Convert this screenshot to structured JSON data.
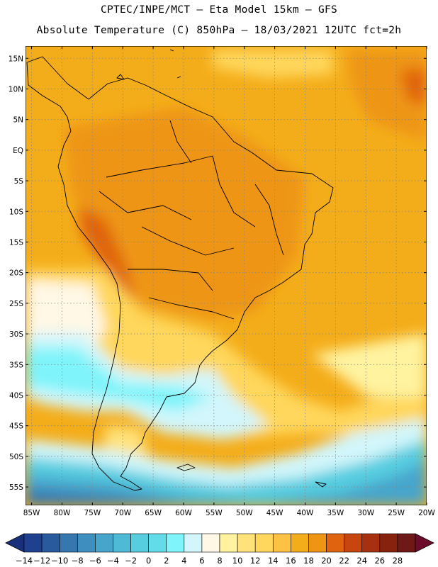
{
  "title_line1": "CPTEC/INPE/MCT –  Eta Model 15km – GFS",
  "title_line2": "Absolute Temperature (C) 850hPa – 18/03/2021 12UTC fct=2h",
  "map": {
    "lat_labels": [
      "15N",
      "10N",
      "5N",
      "EQ",
      "5S",
      "10S",
      "15S",
      "20S",
      "25S",
      "30S",
      "35S",
      "40S",
      "45S",
      "50S",
      "55S"
    ],
    "lat_values": [
      15,
      10,
      5,
      0,
      -5,
      -10,
      -15,
      -20,
      -25,
      -30,
      -35,
      -40,
      -45,
      -50,
      -55
    ],
    "lon_labels": [
      "85W",
      "80W",
      "75W",
      "70W",
      "65W",
      "60W",
      "55W",
      "50W",
      "45W",
      "40W",
      "35W",
      "30W",
      "25W",
      "20W"
    ],
    "lon_values": [
      -85,
      -80,
      -75,
      -70,
      -65,
      -60,
      -55,
      -50,
      -45,
      -40,
      -35,
      -30,
      -25,
      -20
    ],
    "lon_range": [
      -86,
      -20
    ],
    "lat_range": [
      -58,
      17
    ],
    "grid": true
  },
  "colorbar": {
    "labels": [
      "-14",
      "-12",
      "-10",
      "-8",
      "-6",
      "-4",
      "-2",
      "0",
      "2",
      "4",
      "6",
      "8",
      "10",
      "12",
      "14",
      "16",
      "18",
      "20",
      "22",
      "24",
      "26",
      "28"
    ],
    "colors": [
      "#1f3f8f",
      "#2a5a9e",
      "#3777b0",
      "#3f8ec0",
      "#47a5cc",
      "#4fbad6",
      "#57cde0",
      "#63dcea",
      "#7ff4fa",
      "#d2f6fb",
      "#fff8e6",
      "#fff3a0",
      "#ffe27a",
      "#ffd75c",
      "#fbc243",
      "#f4ad1a",
      "#ee9514",
      "#e06410",
      "#c84510",
      "#a6300f",
      "#86220e",
      "#6e1818"
    ],
    "low_arrow_color": "#1a2f7a",
    "high_arrow_color": "#6b0d2a"
  },
  "colors": {
    "ocean_warm": "#f4ad1a",
    "land_warm": "#ee9514",
    "hot": "#e06410",
    "mild": "#ffd75c",
    "cool": "#fff8e6",
    "cold": "#7ff4fa",
    "colder": "#57cde0",
    "coldest": "#3f8ec0"
  }
}
